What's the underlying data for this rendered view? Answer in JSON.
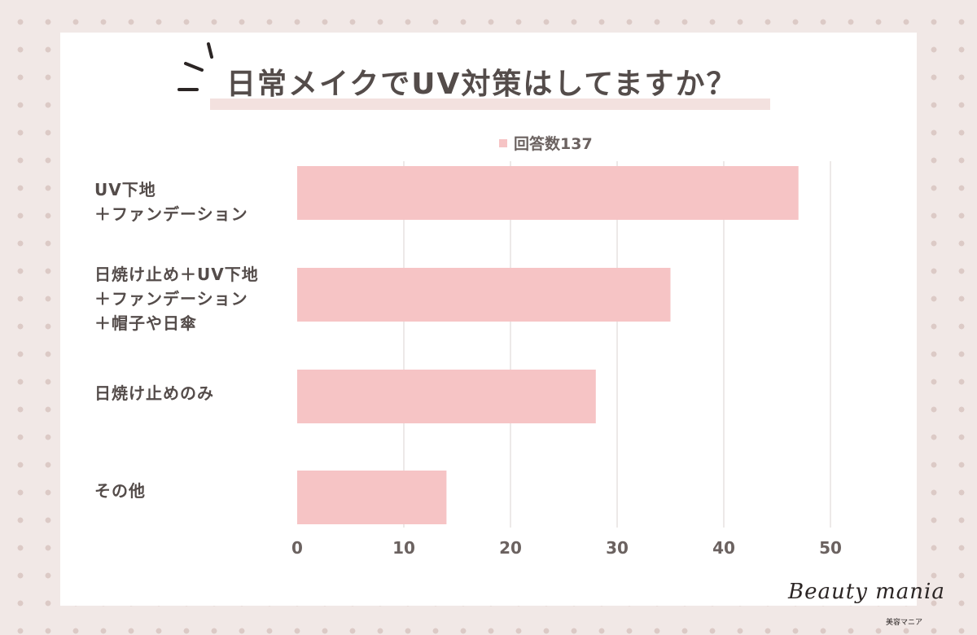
{
  "chart_data": {
    "type": "bar",
    "orientation": "horizontal",
    "title": "日常メイクでUV対策はしてますか？",
    "categories": [
      "UV下地\n＋ファンデーション",
      "日焼け止め＋UV下地\n＋ファンデーション\n＋帽子や日傘",
      "日焼け止めのみ",
      "その他"
    ],
    "series": [
      {
        "name": "回答数137",
        "values": [
          47,
          35,
          28,
          14
        ]
      }
    ],
    "xlim": [
      0,
      50
    ],
    "xticks": [
      "0",
      "10",
      "20",
      "30",
      "40",
      "50"
    ],
    "grid": "vertical",
    "legend_position": "top",
    "bar_color": "#f6c4c5",
    "grid_color": "#e7e2e1"
  },
  "brand": {
    "logo_text": "Beauty mania",
    "logo_subtext": "美容マニア"
  },
  "colors": {
    "background": "#f1e8e6",
    "dots": "#dccac6",
    "text": "#544c4a"
  }
}
